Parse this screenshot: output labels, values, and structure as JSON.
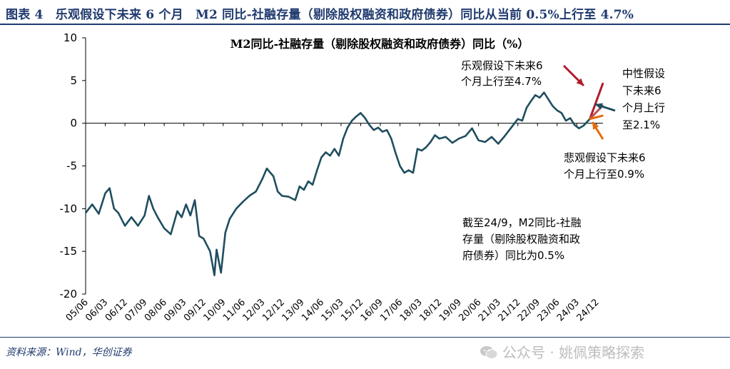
{
  "header": {
    "figure_title": "图表 4　乐观假设下未来 6 个月　M2 同比-社融存量（剔除股权融资和政府债券）同比从当前 0.5%上行至 4.7%"
  },
  "footer": {
    "source": "资料来源：Wind，华创证券",
    "watermark": "公众号 · 姚佩策略探索",
    "watermark_icon": "wechat-icon"
  },
  "chart_data": {
    "type": "line",
    "title": "M2同比-社融存量（剔除股权融资和政府债券）同比（%）",
    "xlabel": "",
    "ylabel": "",
    "ylim": [
      -20,
      10
    ],
    "yticks": [
      -20,
      -15,
      -10,
      -5,
      0,
      5,
      10
    ],
    "xlim": [
      "2005-06",
      "2025-03"
    ],
    "x_tick_labels": [
      "05/06",
      "06/03",
      "06/12",
      "07/09",
      "08/06",
      "09/03",
      "09/12",
      "10/09",
      "11/06",
      "12/03",
      "12/12",
      "13/09",
      "14/06",
      "15/03",
      "15/12",
      "16/09",
      "17/06",
      "18/03",
      "18/12",
      "19/09",
      "20/06",
      "21/03",
      "21/12",
      "22/09",
      "23/06",
      "24/03",
      "24/12"
    ],
    "grid": false,
    "legend": "none",
    "series": [
      {
        "color": "#1f4e5f",
        "points": [
          [
            "2005-06",
            -10.5
          ],
          [
            "2005-09",
            -9.5
          ],
          [
            "2005-12",
            -10.6
          ],
          [
            "2006-03",
            -8.2
          ],
          [
            "2006-05",
            -7.6
          ],
          [
            "2006-07",
            -10.0
          ],
          [
            "2006-09",
            -10.5
          ],
          [
            "2006-12",
            -12.0
          ],
          [
            "2007-03",
            -11.0
          ],
          [
            "2007-06",
            -12.0
          ],
          [
            "2007-09",
            -10.8
          ],
          [
            "2007-11",
            -8.5
          ],
          [
            "2008-01",
            -10.0
          ],
          [
            "2008-03",
            -11.0
          ],
          [
            "2008-06",
            -12.3
          ],
          [
            "2008-09",
            -13.0
          ],
          [
            "2008-12",
            -10.3
          ],
          [
            "2009-02",
            -11.0
          ],
          [
            "2009-04",
            -9.5
          ],
          [
            "2009-06",
            -10.8
          ],
          [
            "2009-08",
            -9.0
          ],
          [
            "2009-10",
            -13.2
          ],
          [
            "2009-12",
            -13.5
          ],
          [
            "2010-03",
            -15.0
          ],
          [
            "2010-05",
            -17.8
          ],
          [
            "2010-06",
            -14.8
          ],
          [
            "2010-08",
            -17.5
          ],
          [
            "2010-10",
            -12.8
          ],
          [
            "2010-12",
            -11.2
          ],
          [
            "2011-03",
            -10.0
          ],
          [
            "2011-06",
            -9.2
          ],
          [
            "2011-09",
            -8.5
          ],
          [
            "2011-12",
            -8.0
          ],
          [
            "2012-03",
            -6.5
          ],
          [
            "2012-05",
            -5.3
          ],
          [
            "2012-08",
            -6.2
          ],
          [
            "2012-10",
            -8.0
          ],
          [
            "2012-12",
            -8.5
          ],
          [
            "2013-03",
            -8.6
          ],
          [
            "2013-06",
            -9.0
          ],
          [
            "2013-08",
            -7.4
          ],
          [
            "2013-10",
            -7.8
          ],
          [
            "2013-12",
            -6.8
          ],
          [
            "2014-02",
            -7.2
          ],
          [
            "2014-04",
            -5.5
          ],
          [
            "2014-06",
            -4.0
          ],
          [
            "2014-08",
            -3.4
          ],
          [
            "2014-10",
            -3.8
          ],
          [
            "2014-12",
            -3.0
          ],
          [
            "2015-02",
            -3.8
          ],
          [
            "2015-04",
            -1.8
          ],
          [
            "2015-06",
            -0.5
          ],
          [
            "2015-08",
            0.3
          ],
          [
            "2015-10",
            0.8
          ],
          [
            "2015-12",
            1.2
          ],
          [
            "2016-02",
            0.6
          ],
          [
            "2016-04",
            -0.2
          ],
          [
            "2016-06",
            -0.8
          ],
          [
            "2016-08",
            -0.5
          ],
          [
            "2016-10",
            -1.0
          ],
          [
            "2016-12",
            -0.8
          ],
          [
            "2017-02",
            -1.8
          ],
          [
            "2017-04",
            -3.5
          ],
          [
            "2017-06",
            -5.0
          ],
          [
            "2017-08",
            -5.8
          ],
          [
            "2017-10",
            -5.5
          ],
          [
            "2017-12",
            -5.8
          ],
          [
            "2018-02",
            -3.0
          ],
          [
            "2018-04",
            -3.2
          ],
          [
            "2018-06",
            -2.8
          ],
          [
            "2018-08",
            -2.2
          ],
          [
            "2018-10",
            -1.4
          ],
          [
            "2018-12",
            -1.8
          ],
          [
            "2019-03",
            -1.6
          ],
          [
            "2019-06",
            -2.3
          ],
          [
            "2019-09",
            -1.8
          ],
          [
            "2019-12",
            -1.5
          ],
          [
            "2020-03",
            -0.6
          ],
          [
            "2020-06",
            -2.0
          ],
          [
            "2020-09",
            -2.2
          ],
          [
            "2020-12",
            -1.6
          ],
          [
            "2021-03",
            -2.4
          ],
          [
            "2021-06",
            -1.5
          ],
          [
            "2021-09",
            -0.5
          ],
          [
            "2021-12",
            0.5
          ],
          [
            "2022-02",
            0.3
          ],
          [
            "2022-04",
            1.8
          ],
          [
            "2022-06",
            2.6
          ],
          [
            "2022-08",
            3.3
          ],
          [
            "2022-10",
            3.0
          ],
          [
            "2022-12",
            3.6
          ],
          [
            "2023-02",
            2.8
          ],
          [
            "2023-04",
            2.0
          ],
          [
            "2023-06",
            1.5
          ],
          [
            "2023-08",
            1.2
          ],
          [
            "2023-10",
            0.3
          ],
          [
            "2023-12",
            0.6
          ],
          [
            "2024-02",
            -0.2
          ],
          [
            "2024-04",
            -0.6
          ],
          [
            "2024-06",
            -0.3
          ],
          [
            "2024-09",
            0.5
          ]
        ]
      },
      {
        "name": "乐观假设",
        "color": "#b01c2e",
        "points": [
          [
            "2024-09",
            0.5
          ],
          [
            "2025-03",
            4.7
          ]
        ]
      },
      {
        "name": "中性假设",
        "color": "#c0504d",
        "points": [
          [
            "2024-09",
            0.5
          ],
          [
            "2025-03",
            2.1
          ]
        ]
      },
      {
        "name": "悲观假设",
        "color": "#e46c0a",
        "points": [
          [
            "2024-09",
            0.5
          ],
          [
            "2025-03",
            0.9
          ]
        ]
      }
    ],
    "annotations": [
      {
        "key": "optimistic",
        "lines": [
          "乐观假设下未来6",
          "个月上行至4.7%"
        ],
        "arrow_color": "#b01c2e"
      },
      {
        "key": "neutral",
        "lines": [
          "中性假设",
          "下未来6",
          "个月上行",
          "至2.1%"
        ],
        "arrow_color": "#1f4e5f"
      },
      {
        "key": "pessimistic",
        "lines": [
          "悲观假设下未来6",
          "个月上行至0.9%"
        ],
        "arrow_color": "#e46c0a"
      },
      {
        "key": "current",
        "lines": [
          "截至24/9，M2同比-社融",
          "存量（剔除股权融资和政",
          "府债券）同比为0.5%"
        ]
      }
    ]
  }
}
